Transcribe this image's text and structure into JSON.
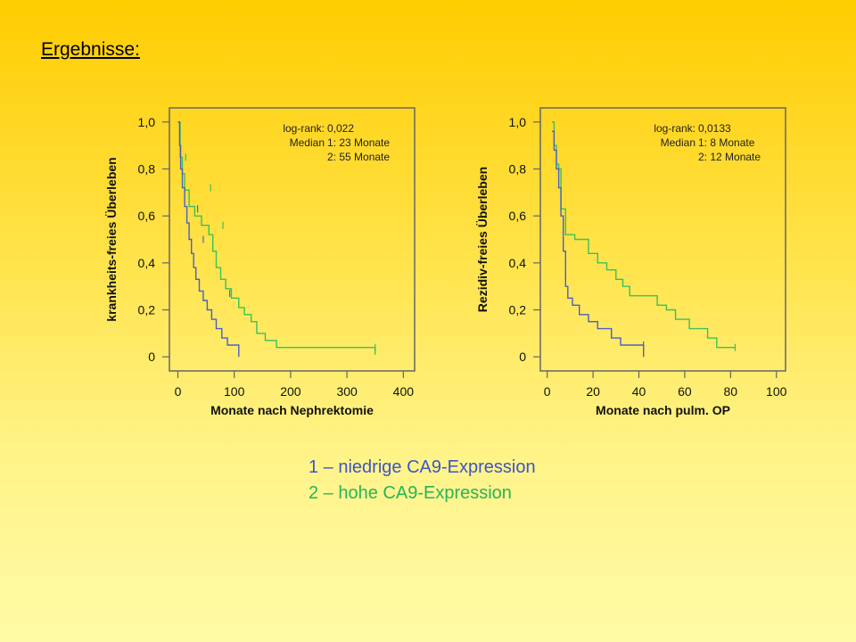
{
  "slide": {
    "title": "Ergebnisse:"
  },
  "legend": [
    {
      "text": "1 – niedrige CA9-Expression",
      "color": "#3d56c4"
    },
    {
      "text": "2 – hohe CA9-Expression",
      "color": "#25b45a"
    }
  ],
  "colors": {
    "group1": "#4a60c8",
    "group2": "#3cc15a",
    "frame": "#666666",
    "label": "#111111"
  },
  "chart_data": [
    {
      "type": "line",
      "subtype": "kaplan-meier",
      "title": "",
      "xlabel": "Monate nach Nephrektomie",
      "ylabel": "krankheits-freies Überleben",
      "xlim": [
        -15,
        420
      ],
      "ylim": [
        -0.06,
        1.06
      ],
      "xticks": [
        0,
        100,
        200,
        300,
        400
      ],
      "xtick_labels": [
        "0",
        "100",
        "200",
        "300",
        "400"
      ],
      "yticks": [
        0,
        0.2,
        0.4,
        0.6,
        0.8,
        1.0
      ],
      "ytick_labels": [
        "0",
        "0,2",
        "0,4",
        "0,6",
        "0,8",
        "1,0"
      ],
      "annotation": [
        {
          "label": "log-rank:",
          "value": "0,022"
        },
        {
          "label": "Median",
          "value": "1: 23 Monate"
        },
        {
          "label": "",
          "value": "2: 55 Monate"
        }
      ],
      "series": [
        {
          "name": "1",
          "color_key": "group1",
          "x": [
            0,
            3,
            5,
            8,
            12,
            16,
            20,
            24,
            28,
            32,
            38,
            45,
            52,
            60,
            68,
            78,
            88,
            98,
            108
          ],
          "y": [
            1.0,
            0.9,
            0.8,
            0.72,
            0.64,
            0.57,
            0.5,
            0.44,
            0.38,
            0.33,
            0.28,
            0.24,
            0.2,
            0.16,
            0.12,
            0.08,
            0.05,
            0.05,
            0.0
          ],
          "censored": [
            {
              "x": 35,
              "y": 0.63
            },
            {
              "x": 45,
              "y": 0.5
            },
            {
              "x": 92,
              "y": 0.27
            }
          ]
        },
        {
          "name": "2",
          "color_key": "group2",
          "x": [
            0,
            4,
            8,
            12,
            20,
            30,
            42,
            55,
            62,
            68,
            76,
            85,
            95,
            108,
            118,
            130,
            140,
            155,
            175,
            195,
            350
          ],
          "y": [
            1.0,
            0.85,
            0.78,
            0.71,
            0.64,
            0.6,
            0.56,
            0.52,
            0.45,
            0.38,
            0.33,
            0.29,
            0.25,
            0.21,
            0.18,
            0.15,
            0.1,
            0.07,
            0.04,
            0.04,
            0.01
          ],
          "censored": [
            {
              "x": 14,
              "y": 0.85
            },
            {
              "x": 58,
              "y": 0.72
            },
            {
              "x": 80,
              "y": 0.56
            },
            {
              "x": 350,
              "y": 0.04
            }
          ]
        }
      ]
    },
    {
      "type": "line",
      "subtype": "kaplan-meier",
      "title": "",
      "xlabel": "Monate nach pulm. OP",
      "ylabel": "Rezidiv-freies Überleben",
      "xlim": [
        -3,
        104
      ],
      "ylim": [
        -0.06,
        1.06
      ],
      "xticks": [
        0,
        20,
        40,
        60,
        80,
        100
      ],
      "xtick_labels": [
        "0",
        "20",
        "40",
        "60",
        "80",
        "100"
      ],
      "yticks": [
        0,
        0.2,
        0.4,
        0.6,
        0.8,
        1.0
      ],
      "ytick_labels": [
        "0",
        "0,2",
        "0,4",
        "0,6",
        "0,8",
        "1,0"
      ],
      "annotation": [
        {
          "label": "log-rank:",
          "value": "0,0133"
        },
        {
          "label": "Median",
          "value": "1:   8 Monate"
        },
        {
          "label": "",
          "value": "2: 12 Monate"
        }
      ],
      "series": [
        {
          "name": "1",
          "color_key": "group1",
          "x": [
            2,
            3,
            4,
            5,
            6,
            7,
            8,
            9,
            11,
            14,
            18,
            22,
            28,
            32,
            42
          ],
          "y": [
            0.96,
            0.88,
            0.8,
            0.72,
            0.6,
            0.45,
            0.3,
            0.25,
            0.22,
            0.18,
            0.15,
            0.12,
            0.08,
            0.05,
            0.0
          ],
          "censored": [
            {
              "x": 42,
              "y": 0.05
            }
          ]
        },
        {
          "name": "2",
          "color_key": "group2",
          "x": [
            2,
            3,
            4,
            5,
            6,
            8,
            12,
            18,
            22,
            26,
            30,
            33,
            36,
            40,
            48,
            52,
            56,
            62,
            70,
            74,
            82
          ],
          "y": [
            1.0,
            0.9,
            0.82,
            0.8,
            0.63,
            0.52,
            0.5,
            0.44,
            0.4,
            0.37,
            0.33,
            0.3,
            0.26,
            0.26,
            0.22,
            0.2,
            0.16,
            0.12,
            0.08,
            0.04,
            0.04
          ],
          "censored": [
            {
              "x": 82,
              "y": 0.04
            }
          ]
        }
      ]
    }
  ]
}
